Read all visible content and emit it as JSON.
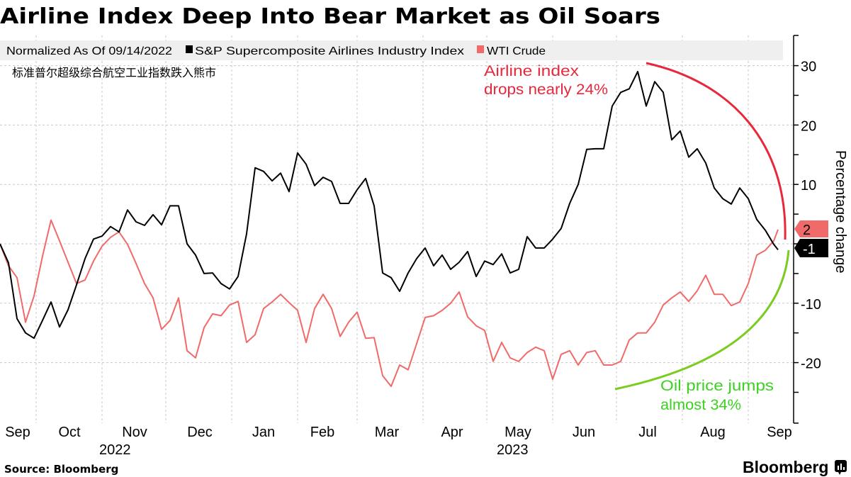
{
  "title": "Airline Index Deep Into Bear Market as Oil Soars",
  "subtitle_cn": "标准普尔超级综合航空工业指数跌入熊市",
  "source": "Source: Bloomberg",
  "brand": "Bloomberg",
  "brand_icon": "bloomberg-chart-icon",
  "chart_data": {
    "type": "line",
    "legend_note": "Normalized As Of 09/14/2022",
    "legend_placement": "top",
    "ylabel": "Percentage change",
    "ylim": [
      -30,
      35
    ],
    "xlim": [
      "2022-09-14",
      "2023-09-14"
    ],
    "y_ticks": [
      30,
      20,
      10,
      0,
      -10,
      -20
    ],
    "y_tick_labels": [
      "30",
      "20",
      "10",
      "0",
      "-10",
      "-20"
    ],
    "grid": true,
    "x_tick_labels": [
      "Sep",
      "Oct",
      "Nov",
      "Dec",
      "Jan",
      "Feb",
      "Mar",
      "Apr",
      "May",
      "Jun",
      "Jul",
      "Aug",
      "Sep"
    ],
    "year_labels": [
      "2022",
      "2023"
    ],
    "x": [
      "2022-09-14",
      "2022-09-18",
      "2022-09-22",
      "2022-09-26",
      "2022-09-30",
      "2022-10-04",
      "2022-10-08",
      "2022-10-12",
      "2022-10-16",
      "2022-10-20",
      "2022-10-24",
      "2022-10-28",
      "2022-11-01",
      "2022-11-05",
      "2022-11-09",
      "2022-11-13",
      "2022-11-17",
      "2022-11-21",
      "2022-11-25",
      "2022-11-29",
      "2022-12-03",
      "2022-12-07",
      "2022-12-11",
      "2022-12-15",
      "2022-12-19",
      "2022-12-23",
      "2022-12-27",
      "2022-12-31",
      "2023-01-04",
      "2023-01-08",
      "2023-01-12",
      "2023-01-16",
      "2023-01-20",
      "2023-01-24",
      "2023-01-28",
      "2023-02-01",
      "2023-02-05",
      "2023-02-09",
      "2023-02-13",
      "2023-02-17",
      "2023-02-21",
      "2023-02-25",
      "2023-03-01",
      "2023-03-05",
      "2023-03-09",
      "2023-03-13",
      "2023-03-17",
      "2023-03-21",
      "2023-03-25",
      "2023-03-29",
      "2023-04-02",
      "2023-04-06",
      "2023-04-10",
      "2023-04-14",
      "2023-04-18",
      "2023-04-22",
      "2023-04-26",
      "2023-04-30",
      "2023-05-04",
      "2023-05-08",
      "2023-05-12",
      "2023-05-16",
      "2023-05-20",
      "2023-05-24",
      "2023-05-28",
      "2023-06-01",
      "2023-06-05",
      "2023-06-09",
      "2023-06-13",
      "2023-06-17",
      "2023-06-21",
      "2023-06-25",
      "2023-06-29",
      "2023-07-03",
      "2023-07-07",
      "2023-07-11",
      "2023-07-15",
      "2023-07-19",
      "2023-07-23",
      "2023-07-27",
      "2023-07-31",
      "2023-08-04",
      "2023-08-08",
      "2023-08-12",
      "2023-08-16",
      "2023-08-20",
      "2023-08-24",
      "2023-08-28",
      "2023-09-01",
      "2023-09-05",
      "2023-09-09",
      "2023-09-13",
      "2023-09-15"
    ],
    "series": [
      {
        "name": "S&P Supercomposite Airlines Industry Index",
        "color": "#000000",
        "last_value_label": "-1",
        "values": [
          0,
          -3.2,
          -12.6,
          -15.0,
          -15.9,
          -12.9,
          -9.8,
          -14.0,
          -11.1,
          -6.9,
          -2.5,
          0.8,
          1.3,
          2.9,
          2.0,
          5.7,
          3.7,
          3.1,
          4.9,
          3.2,
          6.4,
          6.4,
          0,
          -1.9,
          -5.0,
          -4.9,
          -6.7,
          -7.6,
          -5.5,
          1.7,
          12.8,
          12.2,
          10.6,
          11.9,
          8.8,
          15.3,
          13.4,
          9.8,
          11.2,
          10.5,
          6.8,
          6.8,
          9.1,
          11.0,
          6.4,
          -4.9,
          -5.7,
          -8.0,
          -4.9,
          -2.5,
          -0.7,
          -3.7,
          -1.9,
          -4.3,
          -3.1,
          -1.3,
          -5.5,
          -2.9,
          -3.5,
          -1.7,
          -4.9,
          -4.3,
          1.2,
          -0.7,
          -0.7,
          0.8,
          2.6,
          6.8,
          10.0,
          15.9,
          16.0,
          16.0,
          23.2,
          25.5,
          26.1,
          29.0,
          23.2,
          27.3,
          25.5,
          17.5,
          19.0,
          14.6,
          16.0,
          13.6,
          9.4,
          7.6,
          6.7,
          9.4,
          7.6,
          4.1,
          2.3,
          -0.1,
          -1.0
        ]
      },
      {
        "name": "WTI Crude",
        "color": "#f06a6a",
        "last_value_label": "2",
        "values": [
          0,
          -3.7,
          -5.7,
          -13.2,
          -8.8,
          -2.1,
          4.0,
          0.5,
          -3.1,
          -6.7,
          -6.1,
          -2.9,
          -0.4,
          1.1,
          2.0,
          -0.1,
          -3.3,
          -6.7,
          -9.1,
          -14.4,
          -12.9,
          -9.1,
          -18.0,
          -19.2,
          -14.1,
          -11.8,
          -12.1,
          -10.3,
          -9.7,
          -16.6,
          -15.3,
          -10.9,
          -9.8,
          -8.5,
          -9.9,
          -11.2,
          -16.6,
          -10.9,
          -8.5,
          -10.9,
          -15.6,
          -13.2,
          -11.5,
          -15.9,
          -15.8,
          -22.2,
          -24.0,
          -20.4,
          -21.2,
          -16.8,
          -12.4,
          -12.1,
          -11.2,
          -10.0,
          -8.1,
          -12.3,
          -13.8,
          -14.6,
          -19.8,
          -16.6,
          -19.2,
          -19.8,
          -18.3,
          -17.4,
          -18.0,
          -22.8,
          -18.6,
          -18.0,
          -20.4,
          -18.3,
          -18.0,
          -20.4,
          -20.4,
          -19.8,
          -16.2,
          -15.0,
          -15.0,
          -13.2,
          -10.3,
          -9.1,
          -8.1,
          -9.7,
          -7.9,
          -5.3,
          -8.5,
          -8.5,
          -10.4,
          -9.8,
          -6.7,
          -1.9,
          -1.1,
          0.5,
          2.4
        ]
      }
    ],
    "annotations": [
      {
        "lines": [
          "Airline index",
          "drops nearly 24%"
        ],
        "color": "#e8283c"
      },
      {
        "lines": [
          "Oil price jumps",
          "almost 34%"
        ],
        "color": "#3ad21f",
        "arc_color": "#7acc1f"
      }
    ]
  }
}
